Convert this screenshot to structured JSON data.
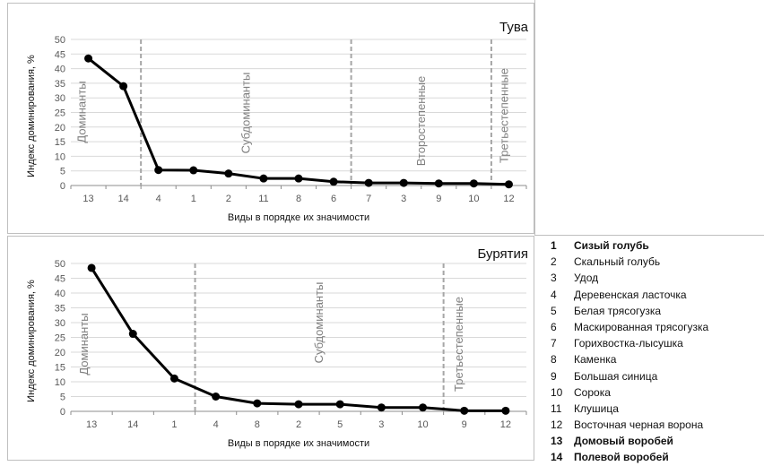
{
  "chart_data": [
    {
      "type": "line",
      "title": "Тува",
      "xlabel": "Виды в порядке их значимости",
      "ylabel": "Индекс доминирования, %",
      "ylim": [
        0,
        50
      ],
      "yticks": [
        "0",
        "5",
        "10",
        "15",
        "20",
        "25",
        "30",
        "35",
        "40",
        "45",
        "50"
      ],
      "grid": true,
      "categories": [
        "13",
        "14",
        "4",
        "1",
        "2",
        "11",
        "8",
        "6",
        "7",
        "3",
        "9",
        "10",
        "12"
      ],
      "series": [
        {
          "values": [
            43.5,
            34.0,
            5.3,
            5.2,
            4.1,
            2.4,
            2.4,
            1.3,
            0.9,
            0.9,
            0.7,
            0.7,
            0.4
          ],
          "color": "#000000"
        }
      ],
      "groups": [
        {
          "label": "Доминанты",
          "start": 0,
          "end": 1
        },
        {
          "label": "Субдоминанты",
          "start": 2,
          "end": 7
        },
        {
          "label": "Второстепенные",
          "start": 8,
          "end": 11
        },
        {
          "label": "Третьестепенные",
          "start": 12,
          "end": 12
        }
      ]
    },
    {
      "type": "line",
      "title": "Бурятия",
      "xlabel": "Виды в порядке их значимости",
      "ylabel": "Индекс доминирования, %",
      "ylim": [
        0,
        50
      ],
      "yticks": [
        "0",
        "5",
        "10",
        "15",
        "20",
        "25",
        "30",
        "35",
        "40",
        "45",
        "50"
      ],
      "grid": true,
      "categories": [
        "13",
        "14",
        "1",
        "4",
        "8",
        "2",
        "5",
        "3",
        "10",
        "9",
        "12"
      ],
      "series": [
        {
          "values": [
            48.5,
            26.2,
            11.1,
            5.0,
            2.7,
            2.4,
            2.4,
            1.3,
            1.3,
            0.2,
            0.2
          ],
          "color": "#000000"
        }
      ],
      "groups": [
        {
          "label": "Доминанты",
          "start": 0,
          "end": 2
        },
        {
          "label": "Субдоминанты",
          "start": 3,
          "end": 8
        },
        {
          "label": "Третьестепенные",
          "start": 9,
          "end": 10
        }
      ]
    }
  ],
  "legend": [
    {
      "num": "1",
      "name": "Сизый голубь",
      "bold": true
    },
    {
      "num": "2",
      "name": "Скальный голубь",
      "bold": false
    },
    {
      "num": "3",
      "name": "Удод",
      "bold": false
    },
    {
      "num": "4",
      "name": "Деревенская ласточка",
      "bold": false
    },
    {
      "num": "5",
      "name": "Белая трясогузка",
      "bold": false
    },
    {
      "num": "6",
      "name": "Маскированная трясогузка",
      "bold": false
    },
    {
      "num": "7",
      "name": "Горихвостка-лысушка",
      "bold": false
    },
    {
      "num": "8",
      "name": "Каменка",
      "bold": false
    },
    {
      "num": "9",
      "name": "Большая синица",
      "bold": false
    },
    {
      "num": "10",
      "name": "Сорока",
      "bold": false
    },
    {
      "num": "11",
      "name": "Клушица",
      "bold": false
    },
    {
      "num": "12",
      "name": "Восточная черная ворона",
      "bold": false
    },
    {
      "num": "13",
      "name": "Домовый воробей",
      "bold": true
    },
    {
      "num": "14",
      "name": "Полевой воробей",
      "bold": true
    }
  ]
}
